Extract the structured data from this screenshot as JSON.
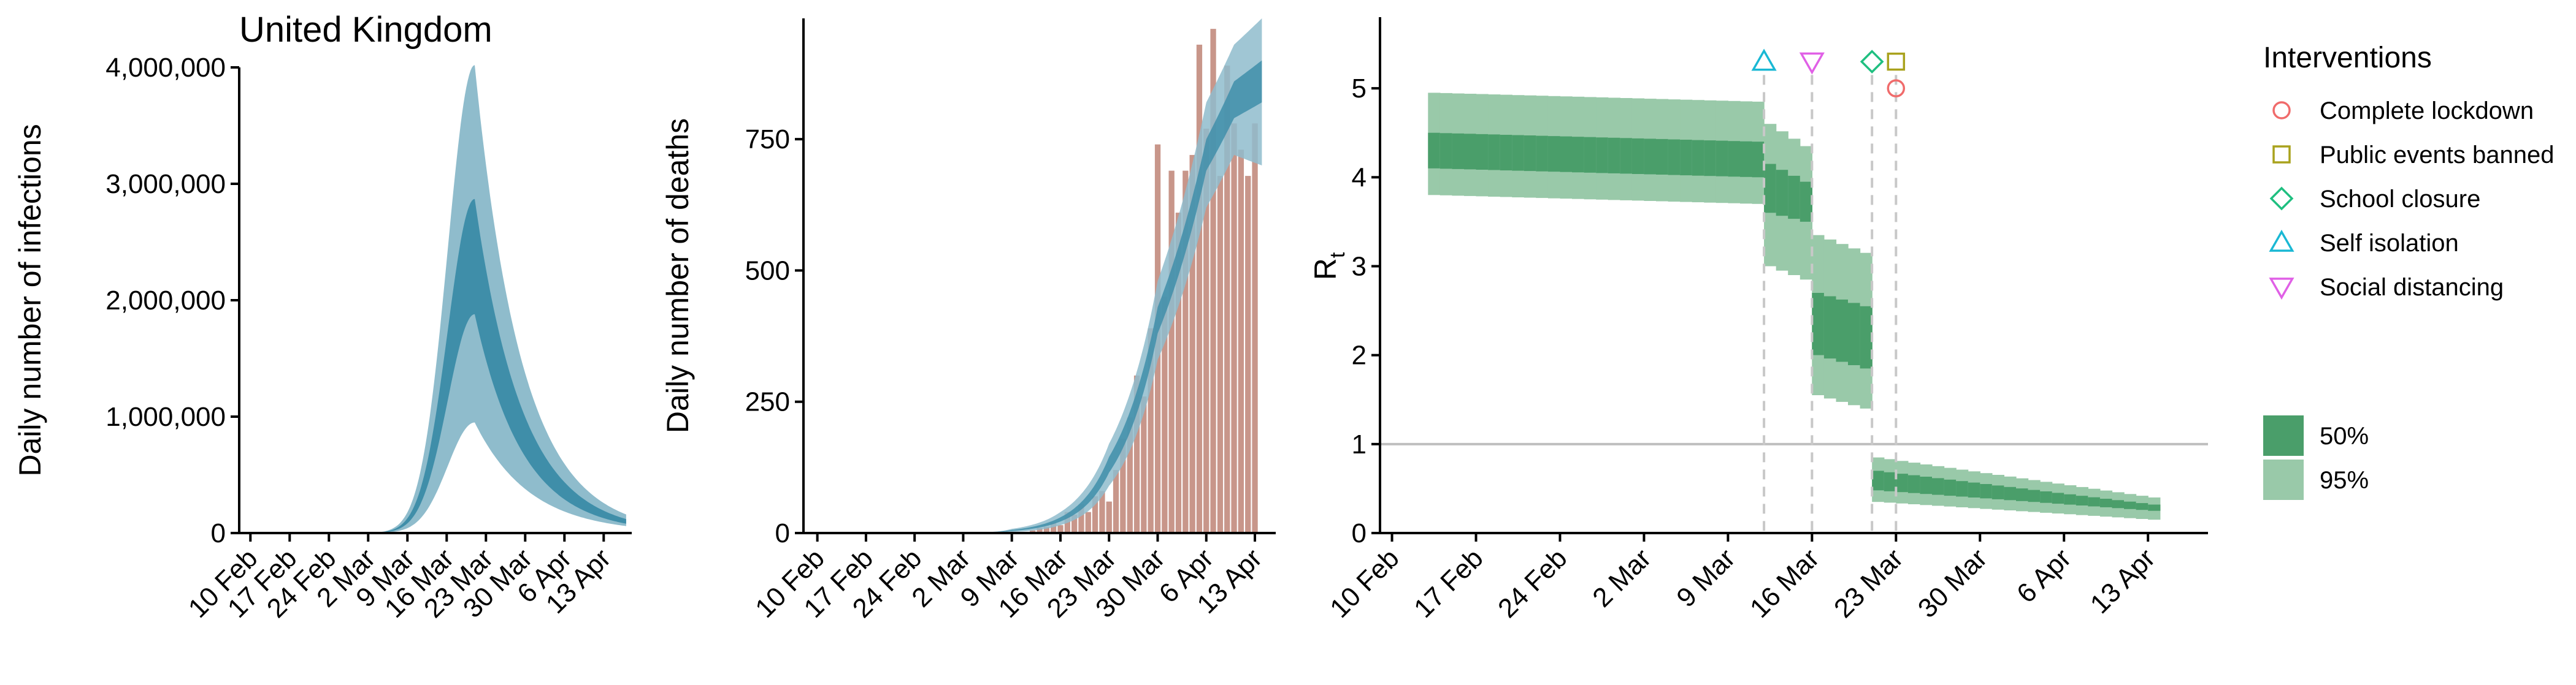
{
  "colors": {
    "infections_95": "#8fbccc",
    "infections_50": "#3f8ea9",
    "deaths_bar": "#c8968a",
    "rt_50": "#4a9e6a",
    "rt_95": "#99c9a9",
    "threshold_line": "#bfbfbf",
    "dashed_line": "#c8c8c8",
    "lockdown": "#f06b6b",
    "public_events": "#a9a21d",
    "school": "#1fbf80",
    "self_isolation": "#1ab8d4",
    "social_distancing": "#e060e6"
  },
  "chart_data": [
    {
      "type": "area",
      "title": "United Kingdom",
      "xlabel": "",
      "ylabel": "Daily number of infections",
      "ylim": [
        0,
        4000000
      ],
      "yticks": [
        "0",
        "1,000,000",
        "2,000,000",
        "3,000,000",
        "4,000,000"
      ],
      "ytick_values": [
        0,
        1000000,
        2000000,
        3000000,
        4000000
      ],
      "xticks": [
        "10 Feb",
        "17 Feb",
        "24 Feb",
        "2 Mar",
        "9 Mar",
        "16 Mar",
        "23 Mar",
        "30 Mar",
        "6 Apr",
        "13 Apr"
      ],
      "peak_date": "21 Mar",
      "start_date": "9 Feb",
      "end_date": "17 Apr",
      "series": [
        {
          "name": "95%",
          "peak_lower": 950000,
          "peak_upper": 4020000,
          "end_lower": 60000,
          "end_upper": 160000
        },
        {
          "name": "50%",
          "peak_lower": 1880000,
          "peak_upper": 2870000,
          "end_lower": 80000,
          "end_upper": 120000
        }
      ]
    },
    {
      "type": "bar",
      "title": "",
      "xlabel": "",
      "ylabel": "Daily number of deaths",
      "ylim": [
        0,
        980
      ],
      "yticks": [
        "0",
        "250",
        "500",
        "750"
      ],
      "ytick_values": [
        0,
        250,
        500,
        750
      ],
      "xticks": [
        "10 Feb",
        "17 Feb",
        "24 Feb",
        "2 Mar",
        "9 Mar",
        "16 Mar",
        "23 Mar",
        "30 Mar",
        "6 Apr",
        "13 Apr"
      ],
      "bar_start_date": "6 Mar",
      "bar_end_date": "13 Apr",
      "values": [
        1,
        0,
        2,
        1,
        1,
        2,
        5,
        10,
        12,
        20,
        15,
        40,
        35,
        55,
        40,
        70,
        80,
        60,
        120,
        180,
        220,
        300,
        260,
        390,
        740,
        450,
        690,
        610,
        690,
        720,
        930,
        770,
        960,
        680,
        890,
        780,
        730,
        680,
        780
      ],
      "model_band": {
        "start_date": "9 Feb",
        "end_date": "14 Apr",
        "points_95": [
          {
            "date": "9 Mar",
            "lower": 2,
            "upper": 8
          },
          {
            "date": "16 Mar",
            "lower": 15,
            "upper": 40
          },
          {
            "date": "23 Mar",
            "lower": 90,
            "upper": 170
          },
          {
            "date": "30 Mar",
            "lower": 330,
            "upper": 480
          },
          {
            "date": "6 Apr",
            "lower": 620,
            "upper": 820
          },
          {
            "date": "10 Apr",
            "lower": 720,
            "upper": 930
          },
          {
            "date": "14 Apr",
            "lower": 700,
            "upper": 980
          }
        ],
        "points_50": [
          {
            "date": "9 Mar",
            "lower": 4,
            "upper": 6
          },
          {
            "date": "16 Mar",
            "lower": 22,
            "upper": 30
          },
          {
            "date": "23 Mar",
            "lower": 115,
            "upper": 145
          },
          {
            "date": "30 Mar",
            "lower": 380,
            "upper": 430
          },
          {
            "date": "6 Apr",
            "lower": 690,
            "upper": 750
          },
          {
            "date": "10 Apr",
            "lower": 790,
            "upper": 860
          },
          {
            "date": "14 Apr",
            "lower": 820,
            "upper": 900
          }
        ]
      }
    },
    {
      "type": "area",
      "title": "",
      "xlabel": "",
      "ylabel": "R",
      "ylabel_sub": "t",
      "ylim": [
        0,
        5.8
      ],
      "yticks": [
        "0",
        "1",
        "2",
        "3",
        "4",
        "5"
      ],
      "ytick_values": [
        0,
        1,
        2,
        3,
        4,
        5
      ],
      "xticks": [
        "10 Feb",
        "17 Feb",
        "24 Feb",
        "2 Mar",
        "9 Mar",
        "16 Mar",
        "23 Mar",
        "30 Mar",
        "6 Apr",
        "13 Apr"
      ],
      "threshold": 1,
      "segments": [
        {
          "start": "13 Feb",
          "end": "12 Mar",
          "r95_start": [
            3.8,
            4.95
          ],
          "r95_end": [
            3.7,
            4.85
          ],
          "r50_start": [
            4.1,
            4.5
          ],
          "r50_end": [
            4.0,
            4.4
          ]
        },
        {
          "start": "12 Mar",
          "end": "16 Mar",
          "r95_start": [
            3.0,
            4.6
          ],
          "r95_end": [
            2.85,
            4.35
          ],
          "r50_start": [
            3.6,
            4.15
          ],
          "r50_end": [
            3.5,
            3.95
          ]
        },
        {
          "start": "16 Mar",
          "end": "21 Mar",
          "r95_start": [
            1.55,
            3.35
          ],
          "r95_end": [
            1.4,
            3.15
          ],
          "r50_start": [
            2.0,
            2.7
          ],
          "r50_end": [
            1.85,
            2.55
          ]
        },
        {
          "start": "21 Mar",
          "end": "14 Apr",
          "r95_start": [
            0.35,
            0.85
          ],
          "r95_end": [
            0.15,
            0.4
          ],
          "r50_start": [
            0.48,
            0.7
          ],
          "r50_end": [
            0.25,
            0.32
          ]
        }
      ],
      "interventions": [
        {
          "name": "Complete lockdown",
          "date": "23 Mar",
          "marker": "circle",
          "y": 5.0
        },
        {
          "name": "Public events banned",
          "date": "23 Mar",
          "marker": "square",
          "y": 5.3
        },
        {
          "name": "School closure",
          "date": "21 Mar",
          "marker": "diamond",
          "y": 5.3
        },
        {
          "name": "Self isolation",
          "date": "12 Mar",
          "marker": "triangle-up",
          "y": 5.3
        },
        {
          "name": "Social distancing",
          "date": "16 Mar",
          "marker": "triangle-down",
          "y": 5.3
        }
      ],
      "legend": {
        "title": "Interventions",
        "placement": "right",
        "items": [
          "Complete lockdown",
          "Public events banned",
          "School closure",
          "Self isolation",
          "Social distancing"
        ],
        "band_items": [
          "50%",
          "95%"
        ]
      }
    }
  ]
}
